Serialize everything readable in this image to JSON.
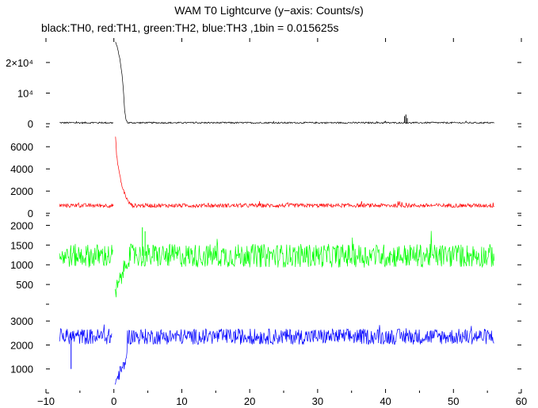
{
  "title": "WAM T0 Lightcurve (y−axis: Counts/s)",
  "subtitle": "black:TH0, red:TH1, green:TH2, blue:TH3 ,1bin = 0.015625s",
  "chart_data": {
    "type": "line",
    "title": "WAM T0 Lightcurve (y−axis: Counts/s)",
    "xlabel": "",
    "ylabel": "",
    "xlim": [
      -10,
      60
    ],
    "x_ticks": [
      -10,
      0,
      10,
      20,
      30,
      40,
      50,
      60
    ],
    "x_tick_labels": [
      "−10",
      "0",
      "10",
      "20",
      "30",
      "40",
      "50",
      "60"
    ],
    "bin_seconds": 0.015625,
    "data_range": [
      -8,
      56
    ],
    "grid": false,
    "series": [
      {
        "name": "TH0",
        "color": "#000000",
        "ylim": [
          -1000,
          28000
        ],
        "y_ticks": [
          0,
          10000,
          20000
        ],
        "y_tick_labels": [
          "0",
          "10⁴",
          "2×10⁴"
        ],
        "baseline": 300,
        "noise": 250,
        "gap": [
          0.0,
          0.2
        ],
        "points": [
          [
            0.2,
            27000
          ],
          [
            0.5,
            25000
          ],
          [
            0.8,
            22000
          ],
          [
            1.0,
            19500
          ],
          [
            1.2,
            16000
          ],
          [
            1.4,
            11000
          ],
          [
            1.6,
            4000
          ],
          [
            1.8,
            1200
          ],
          [
            2.0,
            500
          ]
        ],
        "spikes": [
          [
            42.8,
            2500
          ],
          [
            43.0,
            3000
          ],
          [
            43.2,
            1800
          ]
        ]
      },
      {
        "name": "TH1",
        "color": "#ff0000",
        "ylim": [
          -200,
          7800
        ],
        "y_ticks": [
          0,
          2000,
          4000,
          6000
        ],
        "y_tick_labels": [
          "0",
          "2000",
          "4000",
          "6000"
        ],
        "baseline": 700,
        "noise": 180,
        "gap": [
          0.0,
          0.2
        ],
        "points": [
          [
            0.2,
            7300
          ],
          [
            0.4,
            5200
          ],
          [
            0.7,
            4000
          ],
          [
            1.0,
            3000
          ],
          [
            1.3,
            2200
          ],
          [
            1.6,
            1800
          ],
          [
            1.9,
            1300
          ],
          [
            2.2,
            950
          ],
          [
            2.6,
            800
          ]
        ],
        "spikes": []
      },
      {
        "name": "TH2",
        "color": "#00ff00",
        "ylim": [
          0,
          2250
        ],
        "y_ticks": [
          500,
          1000,
          1500,
          2000
        ],
        "y_tick_labels": [
          "500",
          "1000",
          "1500",
          "2000"
        ],
        "baseline": 1230,
        "noise": 300,
        "gap": [
          -0.1,
          0.1
        ],
        "points": [
          [
            0.1,
            180
          ],
          [
            0.4,
            380
          ],
          [
            0.7,
            500
          ],
          [
            1.0,
            650
          ],
          [
            1.3,
            800
          ],
          [
            1.6,
            950
          ],
          [
            2.0,
            1100
          ]
        ],
        "spikes": [
          [
            4.2,
            1950
          ],
          [
            4.6,
            1850
          ]
        ]
      },
      {
        "name": "TH3",
        "color": "#0000ff",
        "ylim": [
          0,
          3700
        ],
        "y_ticks": [
          1000,
          2000,
          3000
        ],
        "y_tick_labels": [
          "1000",
          "2000",
          "3000"
        ],
        "baseline": 2350,
        "noise": 330,
        "gap": [
          -0.3,
          0.1
        ],
        "points": [
          [
            0.1,
            350
          ],
          [
            0.4,
            550
          ],
          [
            0.7,
            750
          ],
          [
            1.0,
            900
          ],
          [
            1.3,
            1050
          ],
          [
            1.6,
            1200
          ],
          [
            2.0,
            1800
          ]
        ],
        "spikes": [
          [
            -6.3,
            1000
          ]
        ]
      }
    ]
  }
}
